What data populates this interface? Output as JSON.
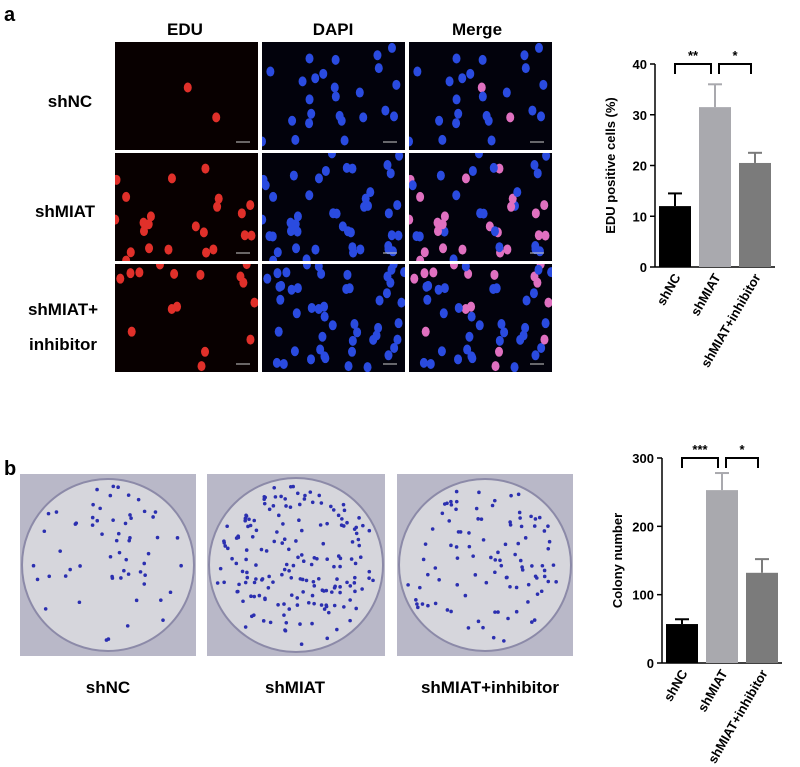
{
  "panels": {
    "a": {
      "label": "a",
      "columns": [
        "EDU",
        "DAPI",
        "Merge"
      ],
      "rows": [
        "shNC",
        "shMIAT",
        "shMIAT+ inhibitor"
      ]
    },
    "b": {
      "label": "b",
      "plates": [
        "shNC",
        "shMIAT",
        "shMIAT+inhibitor"
      ]
    }
  },
  "chart_data": [
    {
      "type": "bar",
      "ylabel": "EDU positive cells (%)",
      "categories": [
        "shNC",
        "shMIAT",
        "shMIAT+inhibitor"
      ],
      "values": [
        12,
        31.5,
        20.5
      ],
      "errors": [
        2.5,
        4.5,
        2
      ],
      "colors": [
        "#000000",
        "#a9a9ae",
        "#7b7b7b"
      ],
      "ylim": [
        0,
        40
      ],
      "yticks": [
        0,
        10,
        20,
        30,
        40
      ],
      "annotations": [
        "**",
        "*"
      ]
    },
    {
      "type": "bar",
      "ylabel": "Colony number",
      "categories": [
        "shNC",
        "shMIAT",
        "shMIAT+inhibitor"
      ],
      "values": [
        57,
        253,
        132
      ],
      "errors": [
        7,
        25,
        20
      ],
      "colors": [
        "#000000",
        "#a9a9ae",
        "#7b7b7b"
      ],
      "ylim": [
        0,
        300
      ],
      "yticks": [
        0,
        100,
        200,
        300
      ],
      "annotations": [
        "***",
        "*"
      ]
    }
  ]
}
